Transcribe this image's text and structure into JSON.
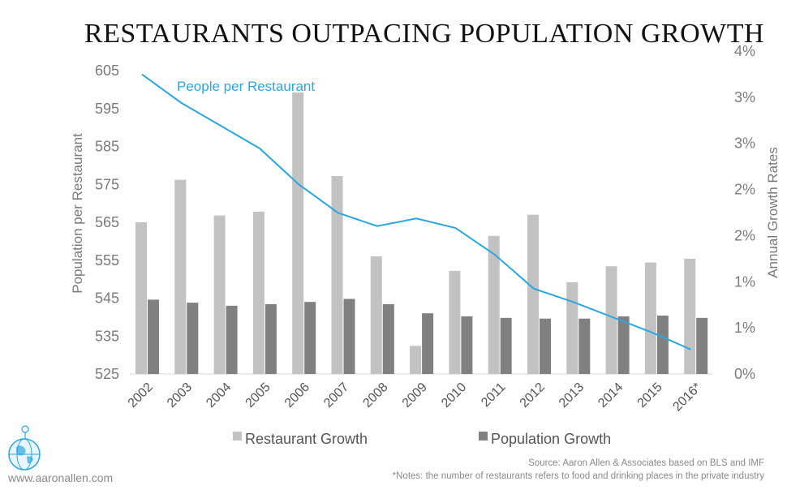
{
  "chart_data": {
    "type": "bar",
    "title": "RESTAURANTS OUTPACING POPULATION GROWTH",
    "categories": [
      "2002",
      "2003",
      "2004",
      "2005",
      "2006",
      "2007",
      "2008",
      "2009",
      "2010",
      "2011",
      "2012",
      "2013",
      "2014",
      "2015",
      "2016*"
    ],
    "bar_series": [
      {
        "name": "Restaurant Growth",
        "color": "#c2c2c2",
        "values": [
          2.0,
          2.56,
          2.09,
          2.14,
          3.71,
          2.61,
          1.55,
          0.37,
          1.36,
          1.82,
          2.1,
          1.21,
          1.42,
          1.47,
          1.52
        ]
      },
      {
        "name": "Population Growth",
        "color": "#808080",
        "values": [
          0.98,
          0.94,
          0.9,
          0.92,
          0.95,
          0.99,
          0.92,
          0.8,
          0.76,
          0.74,
          0.73,
          0.73,
          0.76,
          0.77,
          0.74
        ]
      }
    ],
    "line_series": {
      "name": "People per Restaurant",
      "color": "#2aa7df",
      "values": [
        604,
        596.5,
        590.5,
        584.5,
        575,
        567.5,
        564,
        566,
        563.5,
        556.5,
        547.5,
        544,
        540,
        536,
        531.5
      ]
    },
    "y_left": {
      "label": "Population per Restaurant",
      "range": [
        525,
        605
      ],
      "ticks": [
        "605",
        "595",
        "585",
        "575",
        "565",
        "555",
        "545",
        "535",
        "525"
      ]
    },
    "y_right": {
      "label": "Annual Growth Rates",
      "range": [
        0,
        4
      ],
      "ticks": [
        "4%",
        "3%",
        "3%",
        "2%",
        "2%",
        "1%",
        "1%",
        "0%"
      ]
    },
    "legend_position": "bottom",
    "grid": false
  },
  "footer": {
    "source": "Source: Aaron Allen & Associates based on BLS and IMF",
    "note": "*Notes: the number of restaurants refers to food and drinking places in the private industry",
    "site": "www.aaronallen.com"
  },
  "logo_icon": "globe-logo-icon"
}
